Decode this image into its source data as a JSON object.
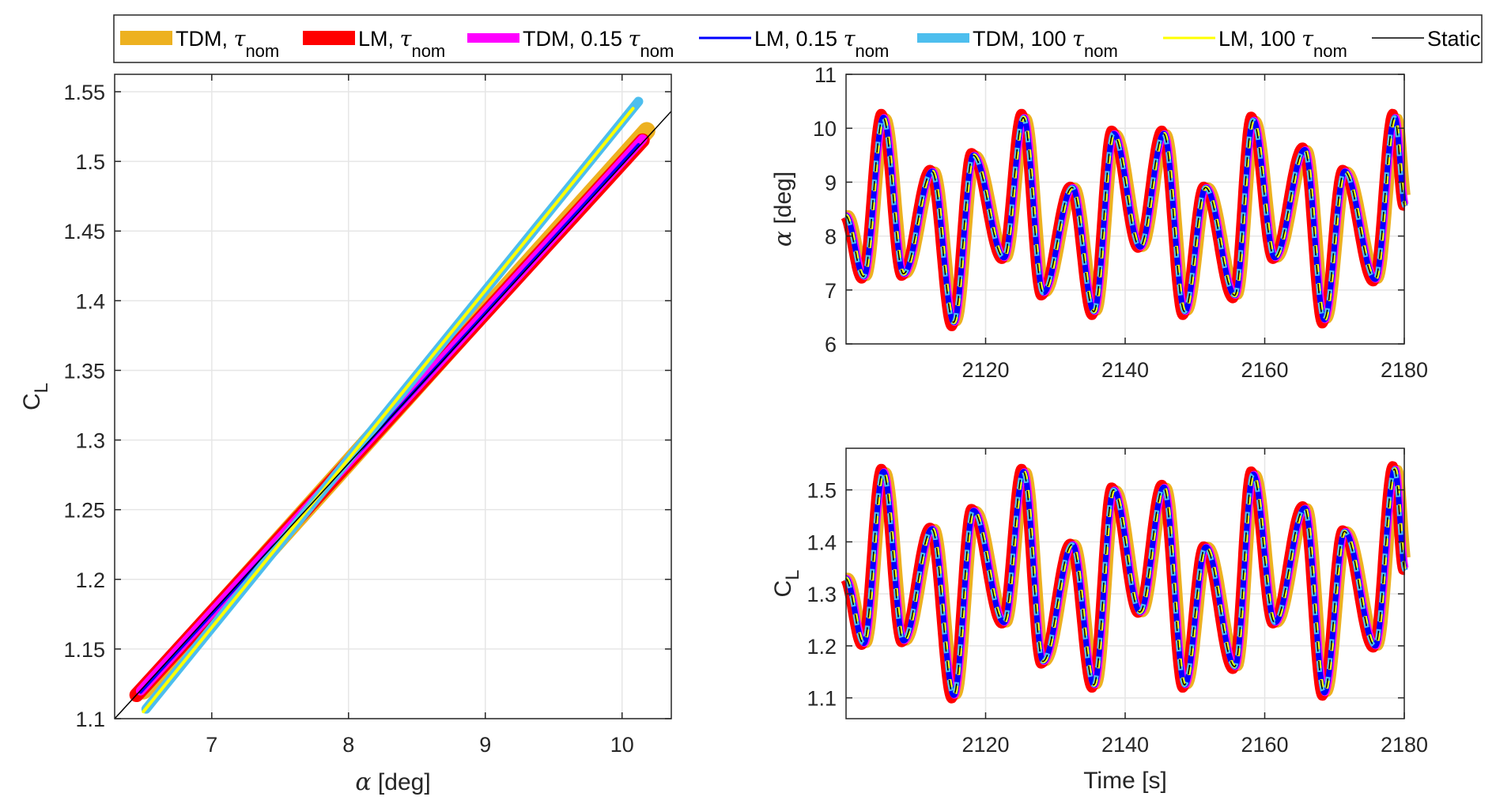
{
  "chart_data": [
    {
      "id": "cl_vs_alpha",
      "type": "line",
      "title": "",
      "xlabel_symbol": "α",
      "xlabel": " [deg]",
      "ylabel_main": "C",
      "ylabel_sub": "L",
      "xlim": [
        6.29,
        10.36
      ],
      "ylim": [
        1.1,
        1.5625
      ],
      "xticks": [
        7,
        8,
        9,
        10
      ],
      "xtick_labels": [
        "7",
        "8",
        "9",
        "10"
      ],
      "yticks": [
        1.1,
        1.15,
        1.2,
        1.25,
        1.3,
        1.35,
        1.4,
        1.45,
        1.5,
        1.55
      ],
      "ytick_labels": [
        "1.1",
        "1.15",
        "1.2",
        "1.25",
        "1.3",
        "1.35",
        "1.4",
        "1.45",
        "1.5",
        "1.55"
      ],
      "grid": true,
      "series": [
        {
          "name": "TDM, τnom",
          "x": [
            6.5,
            10.18
          ],
          "y": [
            1.12,
            1.522
          ]
        },
        {
          "name": "LM, τnom",
          "x": [
            6.45,
            10.15
          ],
          "y": [
            1.117,
            1.515
          ]
        },
        {
          "name": "TDM, 0.15 τnom",
          "x": [
            6.48,
            10.15
          ],
          "y": [
            1.12,
            1.516
          ]
        },
        {
          "name": "LM, 0.15 τnom",
          "x": [
            6.48,
            10.12
          ],
          "y": [
            1.119,
            1.512
          ]
        },
        {
          "name": "TDM, 100 τnom",
          "x": [
            6.52,
            10.12
          ],
          "y": [
            1.107,
            1.543
          ]
        },
        {
          "name": "LM, 100 τnom",
          "x": [
            6.5,
            10.08
          ],
          "y": [
            1.105,
            1.538
          ]
        },
        {
          "name": "Static",
          "x": [
            6.29,
            10.36
          ],
          "y": [
            1.1,
            1.536
          ]
        }
      ]
    },
    {
      "id": "alpha_vs_time",
      "type": "line",
      "xlabel": "",
      "ylabel_symbol": "α",
      "ylabel": " [deg]",
      "xlim": [
        2100,
        2180
      ],
      "ylim": [
        6,
        11
      ],
      "xticks": [
        2120,
        2140,
        2160,
        2180
      ],
      "xtick_labels": [
        "2120",
        "2140",
        "2160",
        "2180"
      ],
      "yticks": [
        6,
        7,
        8,
        9,
        10,
        11
      ],
      "ytick_labels": [
        "6",
        "7",
        "8",
        "9",
        "10",
        "11"
      ],
      "grid": true,
      "extrema_t": [
        2099.9,
        2102.5,
        2105.3,
        2108.2,
        2112.3,
        2115.4,
        2118.2,
        2122.6,
        2125.4,
        2128.2,
        2132.4,
        2135.5,
        2138.3,
        2142.1,
        2145.5,
        2148.5,
        2151.5,
        2155.7,
        2158.3,
        2161.4,
        2165.7,
        2168.5,
        2171.4,
        2175.8,
        2178.6,
        2180.1
      ],
      "extrema_values": [
        8.38,
        7.25,
        10.2,
        7.3,
        9.2,
        6.4,
        9.5,
        7.6,
        10.2,
        6.95,
        8.9,
        6.6,
        9.9,
        7.8,
        9.9,
        6.6,
        8.9,
        6.9,
        10.15,
        7.6,
        9.6,
        6.45,
        9.2,
        7.2,
        10.2,
        8.55
      ],
      "series_names": [
        "TDM, τnom",
        "LM, τnom",
        "TDM, 0.15 τnom",
        "LM, 0.15 τnom",
        "TDM, 100 τnom",
        "LM, 100 τnom",
        "Static"
      ]
    },
    {
      "id": "cl_vs_time",
      "type": "line",
      "xlabel": "Time [s]",
      "ylabel_main": "C",
      "ylabel_sub": "L",
      "xlim": [
        2100,
        2180
      ],
      "ylim": [
        1.06,
        1.58
      ],
      "xticks": [
        2120,
        2140,
        2160,
        2180
      ],
      "xtick_labels": [
        "2120",
        "2140",
        "2160",
        "2180"
      ],
      "yticks": [
        1.1,
        1.2,
        1.3,
        1.4,
        1.5
      ],
      "ytick_labels": [
        "1.1",
        "1.2",
        "1.3",
        "1.4",
        "1.5"
      ],
      "grid": true,
      "extrema_t": [
        2099.9,
        2102.5,
        2105.3,
        2108.2,
        2112.3,
        2115.4,
        2118.2,
        2122.6,
        2125.4,
        2128.2,
        2132.4,
        2135.5,
        2138.3,
        2142.1,
        2145.5,
        2148.5,
        2151.5,
        2155.7,
        2158.3,
        2161.4,
        2165.7,
        2168.5,
        2171.4,
        2175.8,
        2178.6,
        2180.1
      ],
      "extrema_values": [
        1.33,
        1.205,
        1.535,
        1.21,
        1.425,
        1.105,
        1.46,
        1.245,
        1.535,
        1.17,
        1.395,
        1.125,
        1.5,
        1.265,
        1.505,
        1.125,
        1.39,
        1.16,
        1.53,
        1.245,
        1.465,
        1.11,
        1.42,
        1.2,
        1.54,
        1.345
      ],
      "series_names": [
        "TDM, τnom",
        "LM, τnom",
        "TDM, 0.15 τnom",
        "LM, 0.15 τnom",
        "TDM, 100 τnom",
        "LM, 100 τnom",
        "Static"
      ]
    }
  ],
  "legend": {
    "placement": "top",
    "items": [
      {
        "label": "TDM, ",
        "symbol": "τ",
        "sub": "nom",
        "color": "#EDB120",
        "style": "thick"
      },
      {
        "label": "LM, ",
        "symbol": "τ",
        "sub": "nom",
        "color": "#FF0000",
        "style": "thick"
      },
      {
        "label": "TDM, 0.15 ",
        "symbol": "τ",
        "sub": "nom",
        "color": "#FF00FF",
        "style": "medium"
      },
      {
        "label": "LM, 0.15 ",
        "symbol": "τ",
        "sub": "nom",
        "color": "#0000FF",
        "style": "thin"
      },
      {
        "label": "TDM, 100 ",
        "symbol": "τ",
        "sub": "nom",
        "color": "#4DBEEE",
        "style": "medium"
      },
      {
        "label": "LM, 100 ",
        "symbol": "τ",
        "sub": "nom",
        "color": "#FFFF00",
        "style": "thin"
      },
      {
        "label": "Static",
        "symbol": "",
        "sub": "",
        "color": "#000000",
        "style": "hair"
      }
    ]
  }
}
